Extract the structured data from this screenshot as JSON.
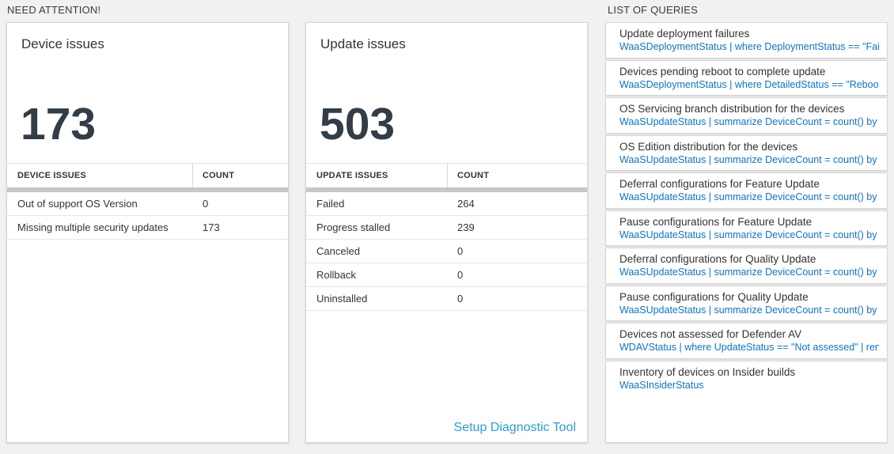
{
  "need_attention": {
    "header": "NEED ATTENTION!",
    "cards": [
      {
        "title": "Device issues",
        "big_number": "173",
        "table": {
          "columns": [
            "DEVICE ISSUES",
            "COUNT"
          ],
          "rows": [
            [
              "Out of support OS Version",
              "0"
            ],
            [
              "Missing multiple security updates",
              "173"
            ]
          ]
        }
      },
      {
        "title": "Update issues",
        "big_number": "503",
        "table": {
          "columns": [
            "UPDATE ISSUES",
            "COUNT"
          ],
          "rows": [
            [
              "Failed",
              "264"
            ],
            [
              "Progress stalled",
              "239"
            ],
            [
              "Canceled",
              "0"
            ],
            [
              "Rollback",
              "0"
            ],
            [
              "Uninstalled",
              "0"
            ]
          ]
        },
        "footer_link": "Setup Diagnostic Tool"
      }
    ]
  },
  "queries": {
    "header": "LIST OF QUERIES",
    "items": [
      {
        "title": "Update deployment failures",
        "query": "WaaSDeploymentStatus | where DeploymentStatus == \"Failed\" |..."
      },
      {
        "title": "Devices pending reboot to complete update",
        "query": "WaaSDeploymentStatus | where DetailedStatus == \"Reboot pend..."
      },
      {
        "title": "OS Servicing branch distribution for the devices",
        "query": "WaaSUpdateStatus | summarize DeviceCount = count() by OSSer..."
      },
      {
        "title": "OS Edition distribution for the devices",
        "query": "WaaSUpdateStatus | summarize DeviceCount = count() by OSEdit..."
      },
      {
        "title": "Deferral configurations for Feature Update",
        "query": "WaaSUpdateStatus | summarize DeviceCount = count() by Featur..."
      },
      {
        "title": "Pause configurations for Feature Update",
        "query": "WaaSUpdateStatus | summarize DeviceCount = count() by Featur..."
      },
      {
        "title": "Deferral configurations for Quality Update",
        "query": "WaaSUpdateStatus | summarize DeviceCount = count() by Qualit..."
      },
      {
        "title": "Pause configurations for Quality Update",
        "query": "WaaSUpdateStatus | summarize DeviceCount = count() by Qualit..."
      },
      {
        "title": "Devices not assessed for Defender AV",
        "query": "WDAVStatus | where UpdateStatus == \"Not assessed\" | render ta..."
      },
      {
        "title": "Inventory of devices on Insider builds",
        "query": "WaaSInsiderStatus"
      }
    ]
  },
  "colors": {
    "page_background": "#f1f1f1",
    "card_background": "#ffffff",
    "card_border": "#d6d6d6",
    "big_number": "#333d47",
    "query_link_blue": "#1173c1",
    "setup_link_blue": "#2e9bd8",
    "table_header_bar": "#c7c7c7"
  }
}
